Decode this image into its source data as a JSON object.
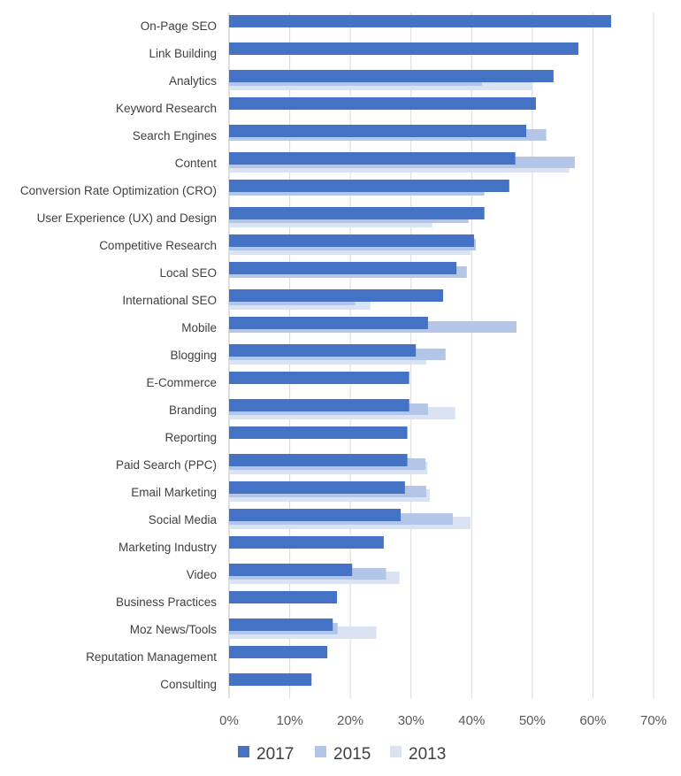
{
  "chart_data": {
    "type": "bar",
    "orientation": "horizontal",
    "title": "",
    "xlabel": "",
    "ylabel": "",
    "xlim": [
      0,
      70
    ],
    "x_ticks": [
      "0%",
      "10%",
      "20%",
      "30%",
      "40%",
      "50%",
      "60%",
      "70%"
    ],
    "grid": true,
    "legend_position": "bottom",
    "categories": [
      "On-Page SEO",
      "Link Building",
      "Analytics",
      "Keyword Research",
      "Search Engines",
      "Content",
      "Conversion Rate Optimization (CRO)",
      "User Experience (UX) and Design",
      "Competitive Research",
      "Local SEO",
      "International SEO",
      "Mobile",
      "Blogging",
      "E-Commerce",
      "Branding",
      "Reporting",
      "Paid Search (PPC)",
      "Email Marketing",
      "Social Media",
      "Marketing Industry",
      "Video",
      "Business Practices",
      "Moz News/Tools",
      "Reputation Management",
      "Consulting"
    ],
    "series": [
      {
        "name": "2017",
        "color": "#4472C4",
        "values": [
          63.0,
          57.6,
          53.5,
          50.6,
          49.0,
          47.2,
          46.2,
          42.1,
          40.4,
          37.5,
          35.3,
          32.8,
          30.8,
          29.7,
          29.7,
          29.4,
          29.4,
          29.0,
          28.3,
          25.5,
          20.3,
          17.8,
          17.1,
          16.2,
          13.6
        ]
      },
      {
        "name": "2015",
        "color": "#B4C6E7",
        "values": [
          null,
          null,
          41.7,
          null,
          52.3,
          57.0,
          42.1,
          39.5,
          40.7,
          39.2,
          20.8,
          47.4,
          35.7,
          null,
          32.8,
          null,
          32.4,
          32.5,
          36.9,
          null,
          25.9,
          null,
          17.9,
          null,
          null
        ]
      },
      {
        "name": "2013",
        "color": "#DAE3F3",
        "values": [
          null,
          null,
          50.0,
          null,
          null,
          56.1,
          null,
          33.5,
          39.8,
          null,
          23.3,
          null,
          32.5,
          null,
          37.3,
          null,
          32.7,
          33.1,
          39.8,
          null,
          28.1,
          null,
          24.3,
          null,
          null
        ]
      }
    ]
  }
}
